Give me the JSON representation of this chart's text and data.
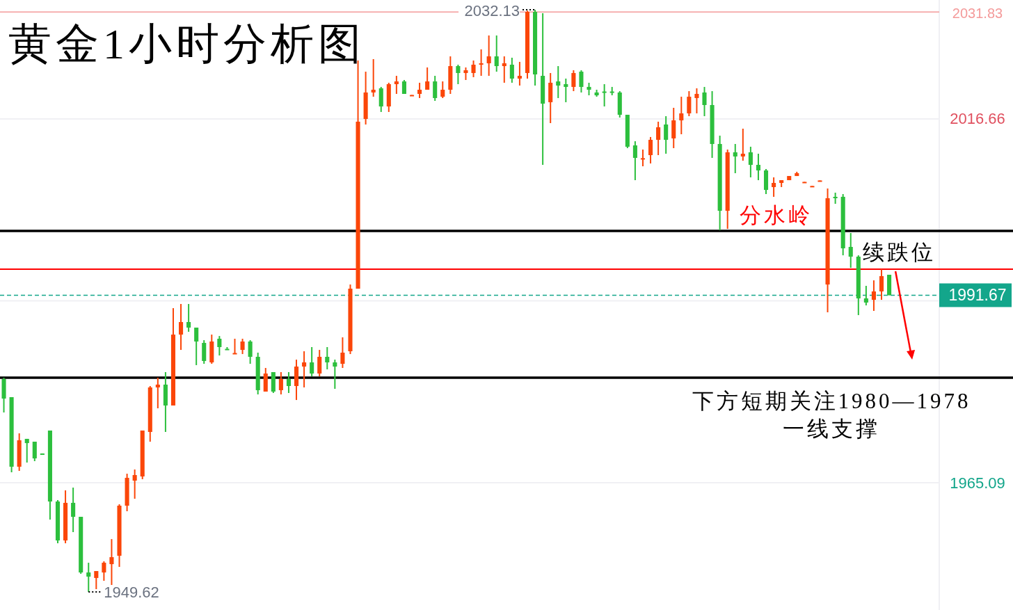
{
  "chart_data": {
    "type": "candlestick",
    "title": "黄金1小时分析图",
    "categories": [
      null,
      null,
      null,
      null,
      null,
      null,
      null,
      null,
      null,
      null,
      null,
      null,
      null,
      null,
      null,
      null,
      null,
      null,
      null,
      null,
      null,
      null,
      null,
      null,
      null,
      null,
      null,
      null,
      null,
      null,
      null,
      null,
      null,
      null,
      null,
      null,
      null,
      null,
      null,
      null,
      null,
      null,
      null,
      null,
      null,
      null,
      null,
      null,
      null,
      null,
      null,
      null,
      null,
      null,
      null,
      null,
      null,
      null,
      null,
      null,
      null,
      null,
      null,
      null,
      null,
      null,
      null,
      null,
      null,
      null,
      null,
      null,
      null,
      null,
      null,
      null,
      null,
      null,
      null,
      null,
      null,
      null,
      null,
      null,
      null,
      null,
      null,
      null,
      null,
      null,
      null,
      null,
      null,
      null,
      null,
      null,
      null,
      null,
      null,
      null,
      null,
      null,
      null,
      null,
      null,
      null,
      null,
      null,
      null,
      null,
      null,
      null,
      null,
      null,
      null,
      null,
      null,
      null,
      null,
      null,
      null,
      null
    ],
    "ohlc": [
      [
        1979.78,
        1979.98,
        1975.05,
        1977.02
      ],
      [
        1977.22,
        1977.22,
        1966.57,
        1967.36
      ],
      [
        1967.36,
        1972.09,
        1966.77,
        1971.11
      ],
      [
        1971.31,
        1971.31,
        1967.95,
        1970.71
      ],
      [
        1970.91,
        1970.91,
        1968.15,
        1968.54
      ],
      [
        1969.24,
        1969.24,
        1969.19,
        1969.19
      ],
      [
        1972.49,
        1972.49,
        1959.87,
        1962.43
      ],
      [
        1962.43,
        1962.63,
        1956.51,
        1956.91
      ],
      [
        1956.91,
        1964.01,
        1956.51,
        1962.24
      ],
      [
        1962.24,
        1964.4,
        1958.09,
        1960.26
      ],
      [
        1960.26,
        1960.26,
        1952.18,
        1952.37
      ],
      [
        1952.37,
        1953.75,
        1949.62,
        1951.78
      ],
      [
        1951.59,
        1952.57,
        1950.01,
        1952.57
      ],
      [
        1952.37,
        1953.95,
        1951.19,
        1953.75
      ],
      [
        1953.55,
        1957.1,
        1950.6,
        1954.54
      ],
      [
        1954.74,
        1962.04,
        1953.16,
        1961.84
      ],
      [
        1961.84,
        1966.37,
        1961.05,
        1965.78
      ],
      [
        1965.39,
        1966.97,
        1962.82,
        1966.18
      ],
      [
        1965.98,
        1972.49,
        1965.59,
        1972.49
      ],
      [
        1972.29,
        1978.8,
        1970.91,
        1978.6
      ],
      [
        1978.6,
        1979.98,
        1975.64,
        1979.0
      ],
      [
        1979.0,
        1980.77,
        1972.29,
        1976.04
      ],
      [
        1976.04,
        1989.84,
        1976.04,
        1986.09
      ],
      [
        1986.09,
        1990.43,
        1983.92,
        1987.87
      ],
      [
        1987.87,
        1990.43,
        1986.49,
        1987.08
      ],
      [
        1987.08,
        1987.08,
        1981.76,
        1985.11
      ],
      [
        1984.91,
        1985.3,
        1981.95,
        1982.35
      ],
      [
        1982.15,
        1986.09,
        1981.95,
        1985.11
      ],
      [
        1985.5,
        1985.89,
        1983.13,
        1984.32
      ],
      [
        1984.07,
        1984.32,
        1983.92,
        1983.97
      ],
      [
        1983.38,
        1985.5,
        1983.33,
        1983.48
      ],
      [
        1983.92,
        1985.5,
        1983.33,
        1985.11
      ],
      [
        1985.11,
        1985.3,
        1981.95,
        1982.94
      ],
      [
        1982.94,
        1983.53,
        1977.61,
        1978.21
      ],
      [
        1978.01,
        1981.36,
        1978.01,
        1980.57
      ],
      [
        1980.77,
        1980.77,
        1977.81,
        1978.01
      ],
      [
        1978.21,
        1980.77,
        1977.61,
        1979.78
      ],
      [
        1979.78,
        1980.77,
        1977.81,
        1978.8
      ],
      [
        1978.8,
        1982.54,
        1976.82,
        1981.56
      ],
      [
        1981.56,
        1983.73,
        1978.6,
        1982.15
      ],
      [
        1982.15,
        1984.32,
        1980.18,
        1980.57
      ],
      [
        1980.57,
        1983.92,
        1980.18,
        1982.94
      ],
      [
        1982.94,
        1984.32,
        1981.16,
        1982.15
      ],
      [
        1982.15,
        1982.54,
        1978.4,
        1981.56
      ],
      [
        1981.95,
        1985.7,
        1981.36,
        1983.53
      ],
      [
        1983.73,
        1993.19,
        1983.33,
        1992.6
      ],
      [
        1992.6,
        2024.94,
        1992.6,
        2016.27
      ],
      [
        2016.66,
        2023.36,
        2015.87,
        2020.41
      ],
      [
        2020.41,
        2025.14,
        2019.81,
        2020.8
      ],
      [
        2021.0,
        2021.2,
        2017.65,
        2018.43
      ],
      [
        2018.43,
        2021.79,
        2017.65,
        2021.59
      ],
      [
        2021.59,
        2022.77,
        2020.21,
        2021.98
      ],
      [
        2021.98,
        2022.18,
        2020.21,
        2020.21
      ],
      [
        2019.96,
        2020.06,
        2019.96,
        2020.06
      ],
      [
        2020.21,
        2021.79,
        2019.62,
        2020.8
      ],
      [
        2020.8,
        2023.96,
        2020.8,
        2021.98
      ],
      [
        2021.98,
        2022.77,
        2019.22,
        2019.62
      ],
      [
        2019.81,
        2021.98,
        2019.62,
        2020.8
      ],
      [
        2020.8,
        2025.53,
        2020.21,
        2024.15
      ],
      [
        2024.15,
        2024.35,
        2021.59,
        2023.17
      ],
      [
        2023.17,
        2023.96,
        2022.18,
        2023.56
      ],
      [
        2023.17,
        2024.94,
        2022.58,
        2024.35
      ],
      [
        2024.35,
        2026.52,
        2022.77,
        2024.55
      ],
      [
        2024.55,
        2028.49,
        2022.77,
        2025.53
      ],
      [
        2025.53,
        2028.49,
        2023.36,
        2024.15
      ],
      [
        2024.15,
        2025.53,
        2021.79,
        2024.55
      ],
      [
        2024.35,
        2025.34,
        2021.79,
        2022.38
      ],
      [
        2022.38,
        2024.75,
        2021.39,
        2022.77
      ],
      [
        2023.17,
        2032.0,
        2022.38,
        2031.84
      ],
      [
        2031.84,
        2032.13,
        2021.39,
        2022.97
      ],
      [
        2022.77,
        2031.65,
        2010.15,
        2018.83
      ],
      [
        2019.03,
        2023.17,
        2016.07,
        2021.79
      ],
      [
        2021.98,
        2024.15,
        2019.62,
        2021.39
      ],
      [
        2021.59,
        2022.38,
        2019.03,
        2021.2
      ],
      [
        2021.2,
        2023.56,
        2020.6,
        2023.17
      ],
      [
        2023.36,
        2023.56,
        2020.41,
        2021.2
      ],
      [
        2021.2,
        2021.79,
        2020.01,
        2020.8
      ],
      [
        2020.41,
        2020.8,
        2019.81,
        2020.01
      ],
      [
        2020.55,
        2021.59,
        2018.43,
        2020.45
      ],
      [
        2020.55,
        2021.2,
        2020.01,
        2020.45
      ],
      [
        2020.41,
        2020.6,
        2016.86,
        2017.25
      ],
      [
        2017.25,
        2017.25,
        2012.52,
        2012.72
      ],
      [
        2012.91,
        2013.5,
        2007.98,
        2011.14
      ],
      [
        2011.0,
        2012.32,
        2009.95,
        2011.1
      ],
      [
        2011.53,
        2014.1,
        2010.35,
        2013.7
      ],
      [
        2013.7,
        2016.27,
        2011.53,
        2015.48
      ],
      [
        2015.87,
        2017.05,
        2011.73,
        2013.7
      ],
      [
        2013.9,
        2018.24,
        2012.52,
        2016.46
      ],
      [
        2016.46,
        2019.81,
        2014.49,
        2017.45
      ],
      [
        2017.45,
        2020.6,
        2017.05,
        2019.81
      ],
      [
        2019.62,
        2021.0,
        2017.45,
        2020.21
      ],
      [
        2020.41,
        2021.2,
        2017.05,
        2018.63
      ],
      [
        2018.63,
        2020.6,
        2011.14,
        2013.11
      ],
      [
        2013.11,
        2014.29,
        2000.88,
        2003.64
      ],
      [
        2003.64,
        2012.32,
        2001.08,
        2011.93
      ],
      [
        2011.93,
        2013.11,
        2008.97,
        2011.34
      ],
      [
        2011.34,
        2015.28,
        2010.74,
        2011.73
      ],
      [
        2011.93,
        2012.72,
        2008.38,
        2010.15
      ],
      [
        2010.15,
        2011.73,
        2007.98,
        2009.36
      ],
      [
        2009.36,
        2009.56,
        2006.01,
        2006.6
      ],
      [
        2007.0,
        2008.38,
        2005.62,
        2007.59
      ],
      [
        2007.59,
        2007.98,
        2007.0,
        2007.98
      ],
      [
        2007.98,
        2008.57,
        2007.98,
        2008.57
      ],
      [
        2008.57,
        2009.17,
        2008.57,
        2008.97
      ],
      [
        2007.62,
        2007.74,
        2007.62,
        2007.74
      ],
      [
        2007.04,
        2007.16,
        2007.04,
        2007.16
      ],
      [
        2007.82,
        2007.94,
        2007.82,
        2007.94
      ],
      [
        1993.19,
        2006.8,
        1989.25,
        2005.42
      ],
      [
        2005.62,
        2006.21,
        2004.63,
        2005.42
      ],
      [
        2005.62,
        2006.01,
        1997.33,
        1998.32
      ],
      [
        1998.52,
        2000.49,
        1995.56,
        1997.14
      ],
      [
        1997.14,
        1997.33,
        1988.85,
        1991.22
      ],
      [
        1991.22,
        1993.0,
        1990.23,
        1990.63
      ],
      [
        1991.02,
        1993.78,
        1989.45,
        1992.21
      ],
      [
        1992.21,
        1995.36,
        1991.02,
        1994.38
      ],
      [
        1994.57,
        1994.57,
        1991.67,
        1991.67
      ],
      null,
      null,
      null,
      null,
      null,
      null
    ],
    "ylim": [
      1947.05,
      2033.52
    ],
    "yticks": [
      2016.66,
      {
        "value": 1990.88,
        "label": null
      },
      1965.09
    ],
    "grid": "y",
    "tick_labels": "y",
    "ref_lines": [
      {
        "axis": "y",
        "value": 2031.83,
        "label": "2031.83",
        "color": "#f49a9a"
      },
      {
        "axis": "y",
        "value": 1991.67,
        "label": "1991.67",
        "color": "#13a68b",
        "line_style": "dashed"
      },
      {
        "axis": "y",
        "value": 2000.79,
        "label": "分水岭",
        "color": "#000000"
      },
      {
        "axis": "y",
        "value": 1995.36,
        "label": "续跌位",
        "color": "#ff0000"
      },
      {
        "axis": "y",
        "value": 1979.98,
        "label": "下方短期关注1980—1978\n一线支撑",
        "color": "#000000"
      }
    ],
    "annotations": [
      "2032.13",
      "1949.62"
    ]
  }
}
